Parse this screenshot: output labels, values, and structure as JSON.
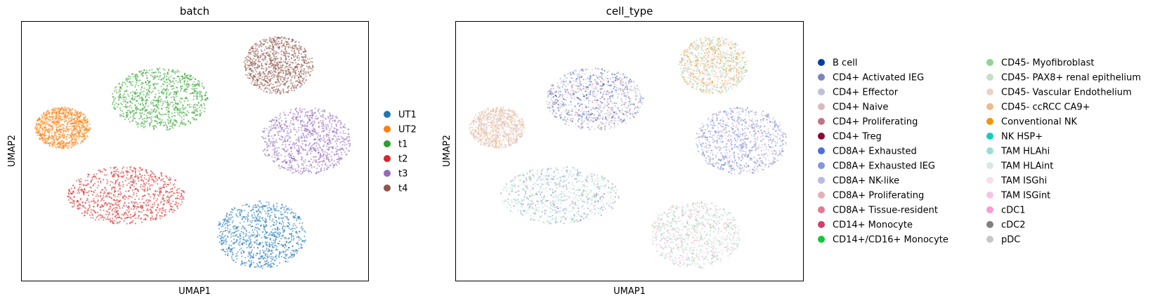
{
  "chart_data": [
    {
      "type": "scatter",
      "title": "batch",
      "xlabel": "UMAP1",
      "ylabel": "UMAP2",
      "grid": false,
      "ticks": "none",
      "legend_placement": "right",
      "legend": [
        {
          "label": "UT1",
          "color": "#1f77b4"
        },
        {
          "label": "UT2",
          "color": "#ff7f0e"
        },
        {
          "label": "t1",
          "color": "#2ca02c"
        },
        {
          "label": "t2",
          "color": "#d62728"
        },
        {
          "label": "t3",
          "color": "#9467bd"
        },
        {
          "label": "t4",
          "color": "#8c564b"
        }
      ],
      "clusters": [
        {
          "group": "t4",
          "cx": 0.74,
          "cy": 0.83,
          "rx": 0.1,
          "ry": 0.11
        },
        {
          "group": "t1",
          "cx": 0.4,
          "cy": 0.7,
          "rx": 0.14,
          "ry": 0.12
        },
        {
          "group": "UT2",
          "cx": 0.12,
          "cy": 0.59,
          "rx": 0.08,
          "ry": 0.08
        },
        {
          "group": "t3",
          "cx": 0.82,
          "cy": 0.54,
          "rx": 0.13,
          "ry": 0.13
        },
        {
          "group": "t2",
          "cx": 0.3,
          "cy": 0.33,
          "rx": 0.17,
          "ry": 0.11
        },
        {
          "group": "UT1",
          "cx": 0.69,
          "cy": 0.18,
          "rx": 0.13,
          "ry": 0.13
        }
      ]
    },
    {
      "type": "scatter",
      "title": "cell_type",
      "xlabel": "UMAP1",
      "ylabel": "UMAP2",
      "grid": false,
      "ticks": "none",
      "legend_placement": "right",
      "legend": [
        {
          "label": "B cell",
          "color": "#023fa5"
        },
        {
          "label": "CD4+ Activated IEG",
          "color": "#7d87b9"
        },
        {
          "label": "CD4+ Effector",
          "color": "#bec1d4"
        },
        {
          "label": "CD4+ Naive",
          "color": "#d6bcc0"
        },
        {
          "label": "CD4+ Proliferating",
          "color": "#bb7784"
        },
        {
          "label": "CD4+ Treg",
          "color": "#8e063b"
        },
        {
          "label": "CD8A+ Exhausted",
          "color": "#4a6fe3"
        },
        {
          "label": "CD8A+ Exhausted IEG",
          "color": "#8595e1"
        },
        {
          "label": "CD8A+ NK-like",
          "color": "#b5bbe3"
        },
        {
          "label": "CD8A+ Proliferating",
          "color": "#e6afb9"
        },
        {
          "label": "CD8A+ Tissue-resident",
          "color": "#e07b91"
        },
        {
          "label": "CD14+ Monocyte",
          "color": "#d33f6a"
        },
        {
          "label": "CD14+/CD16+ Monocyte",
          "color": "#11c638"
        },
        {
          "label": "CD45- Myofibroblast",
          "color": "#8dd593"
        },
        {
          "label": "CD45- PAX8+ renal epithelium",
          "color": "#c6dec7"
        },
        {
          "label": "CD45- Vascular Endothelium",
          "color": "#ead3c6"
        },
        {
          "label": "CD45- ccRCC CA9+",
          "color": "#f0b98d"
        },
        {
          "label": "Conventional NK",
          "color": "#ef9708"
        },
        {
          "label": "NK HSP+",
          "color": "#0fcfc0"
        },
        {
          "label": "TAM HLAhi",
          "color": "#9cded6"
        },
        {
          "label": "TAM HLAint",
          "color": "#d5eae7"
        },
        {
          "label": "TAM ISGhi",
          "color": "#f3e1eb"
        },
        {
          "label": "TAM ISGint",
          "color": "#f6c4e1"
        },
        {
          "label": "cDC1",
          "color": "#f79cd4"
        },
        {
          "label": "cDC2",
          "color": "#7f7f7f"
        },
        {
          "label": "pDC",
          "color": "#c7c7c7"
        }
      ]
    }
  ]
}
